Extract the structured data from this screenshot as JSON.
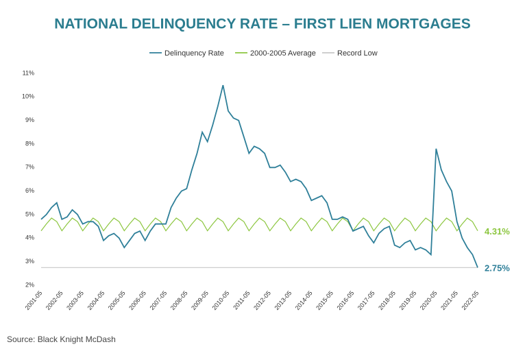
{
  "chart_data": {
    "type": "line",
    "title": "NATIONAL DELINQUENCY RATE – FIRST LIEN MORTGAGES",
    "source": "Source: Black Knight McDash",
    "x": [
      "2001-05",
      "2001-08",
      "2001-11",
      "2002-02",
      "2002-05",
      "2002-08",
      "2002-11",
      "2003-02",
      "2003-05",
      "2003-08",
      "2003-11",
      "2004-02",
      "2004-05",
      "2004-08",
      "2004-11",
      "2005-02",
      "2005-05",
      "2005-08",
      "2005-11",
      "2006-02",
      "2006-05",
      "2006-08",
      "2006-11",
      "2007-02",
      "2007-05",
      "2007-08",
      "2007-11",
      "2008-02",
      "2008-05",
      "2008-08",
      "2008-11",
      "2009-02",
      "2009-05",
      "2009-08",
      "2009-11",
      "2010-02",
      "2010-05",
      "2010-08",
      "2010-11",
      "2011-02",
      "2011-05",
      "2011-08",
      "2011-11",
      "2012-02",
      "2012-05",
      "2012-08",
      "2012-11",
      "2013-02",
      "2013-05",
      "2013-08",
      "2013-11",
      "2014-02",
      "2014-05",
      "2014-08",
      "2014-11",
      "2015-02",
      "2015-05",
      "2015-08",
      "2015-11",
      "2016-02",
      "2016-05",
      "2016-08",
      "2016-11",
      "2017-02",
      "2017-05",
      "2017-08",
      "2017-11",
      "2018-02",
      "2018-05",
      "2018-08",
      "2018-11",
      "2019-02",
      "2019-05",
      "2019-08",
      "2019-11",
      "2020-02",
      "2020-05",
      "2020-08",
      "2020-11",
      "2021-02",
      "2021-05",
      "2021-08",
      "2021-11",
      "2022-02",
      "2022-05"
    ],
    "series": [
      {
        "name": "Delinquency Rate",
        "color": "#2e7f99",
        "values": [
          4.8,
          5.0,
          5.3,
          5.5,
          4.8,
          4.9,
          5.2,
          5.0,
          4.6,
          4.7,
          4.7,
          4.5,
          3.9,
          4.1,
          4.2,
          4.0,
          3.6,
          3.9,
          4.2,
          4.3,
          3.9,
          4.3,
          4.6,
          4.6,
          4.6,
          5.3,
          5.7,
          6.0,
          6.1,
          6.9,
          7.6,
          8.5,
          8.1,
          8.8,
          9.6,
          10.5,
          9.4,
          9.1,
          9.0,
          8.3,
          7.6,
          7.9,
          7.8,
          7.6,
          7.0,
          7.0,
          7.1,
          6.8,
          6.4,
          6.5,
          6.4,
          6.1,
          5.6,
          5.7,
          5.8,
          5.5,
          4.8,
          4.8,
          4.9,
          4.8,
          4.3,
          4.4,
          4.5,
          4.1,
          3.8,
          4.2,
          4.4,
          4.5,
          3.7,
          3.6,
          3.8,
          3.9,
          3.5,
          3.6,
          3.5,
          3.3,
          7.8,
          6.9,
          6.4,
          6.0,
          4.7,
          4.0,
          3.6,
          3.3,
          2.75
        ],
        "value_labels": [
          null,
          null,
          null,
          null,
          null,
          null,
          null,
          null,
          null,
          null,
          null,
          null,
          null,
          null,
          null,
          null,
          null,
          null,
          null,
          null,
          null,
          null,
          null,
          null,
          null,
          null,
          null,
          null,
          null,
          null,
          null,
          null,
          null,
          null,
          null,
          null,
          null,
          null,
          null,
          null,
          null,
          null,
          null,
          null,
          null,
          null,
          null,
          null,
          null,
          null,
          null,
          null,
          null,
          null,
          null,
          null,
          null,
          null,
          null,
          null,
          null,
          null,
          null,
          null,
          null,
          null,
          null,
          null,
          null,
          null,
          null,
          null,
          null,
          null,
          null,
          null,
          null,
          null,
          null,
          null,
          null,
          null,
          null,
          null,
          "2.75%"
        ]
      },
      {
        "name": "2000-2005 Average",
        "color": "#8cc63f",
        "values": [
          4.31,
          4.6,
          4.85,
          4.7,
          4.31,
          4.6,
          4.85,
          4.7,
          4.31,
          4.6,
          4.85,
          4.7,
          4.31,
          4.6,
          4.85,
          4.7,
          4.31,
          4.6,
          4.85,
          4.7,
          4.31,
          4.6,
          4.85,
          4.7,
          4.31,
          4.6,
          4.85,
          4.7,
          4.31,
          4.6,
          4.85,
          4.7,
          4.31,
          4.6,
          4.85,
          4.7,
          4.31,
          4.6,
          4.85,
          4.7,
          4.31,
          4.6,
          4.85,
          4.7,
          4.31,
          4.6,
          4.85,
          4.7,
          4.31,
          4.6,
          4.85,
          4.7,
          4.31,
          4.6,
          4.85,
          4.7,
          4.31,
          4.6,
          4.85,
          4.7,
          4.31,
          4.6,
          4.85,
          4.7,
          4.31,
          4.6,
          4.85,
          4.7,
          4.31,
          4.6,
          4.85,
          4.7,
          4.31,
          4.6,
          4.85,
          4.7,
          4.31,
          4.6,
          4.85,
          4.7,
          4.31,
          4.6,
          4.85,
          4.7,
          4.31
        ],
        "value_labels": [
          null,
          null,
          null,
          null,
          null,
          null,
          null,
          null,
          null,
          null,
          null,
          null,
          null,
          null,
          null,
          null,
          null,
          null,
          null,
          null,
          null,
          null,
          null,
          null,
          null,
          null,
          null,
          null,
          null,
          null,
          null,
          null,
          null,
          null,
          null,
          null,
          null,
          null,
          null,
          null,
          null,
          null,
          null,
          null,
          null,
          null,
          null,
          null,
          null,
          null,
          null,
          null,
          null,
          null,
          null,
          null,
          null,
          null,
          null,
          null,
          null,
          null,
          null,
          null,
          null,
          null,
          null,
          null,
          null,
          null,
          null,
          null,
          null,
          null,
          null,
          null,
          null,
          null,
          null,
          null,
          null,
          null,
          null,
          null,
          "4.31%"
        ]
      },
      {
        "name": "Record Low",
        "color": "#c8c8c8",
        "values": [
          2.75,
          2.75,
          2.75,
          2.75,
          2.75,
          2.75,
          2.75,
          2.75,
          2.75,
          2.75,
          2.75,
          2.75,
          2.75,
          2.75,
          2.75,
          2.75,
          2.75,
          2.75,
          2.75,
          2.75,
          2.75,
          2.75,
          2.75,
          2.75,
          2.75,
          2.75,
          2.75,
          2.75,
          2.75,
          2.75,
          2.75,
          2.75,
          2.75,
          2.75,
          2.75,
          2.75,
          2.75,
          2.75,
          2.75,
          2.75,
          2.75,
          2.75,
          2.75,
          2.75,
          2.75,
          2.75,
          2.75,
          2.75,
          2.75,
          2.75,
          2.75,
          2.75,
          2.75,
          2.75,
          2.75,
          2.75,
          2.75,
          2.75,
          2.75,
          2.75,
          2.75,
          2.75,
          2.75,
          2.75,
          2.75,
          2.75,
          2.75,
          2.75,
          2.75,
          2.75,
          2.75,
          2.75,
          2.75,
          2.75,
          2.75,
          2.75,
          2.75,
          2.75,
          2.75,
          2.75,
          2.75,
          2.75,
          2.75,
          2.75,
          2.75
        ]
      }
    ],
    "ylim": [
      2,
      11
    ],
    "yticks": [
      {
        "value": 2,
        "label": "2%"
      },
      {
        "value": 3,
        "label": "3%"
      },
      {
        "value": 4,
        "label": "4%"
      },
      {
        "value": 5,
        "label": "5%"
      },
      {
        "value": 6,
        "label": "6%"
      },
      {
        "value": 7,
        "label": "7%"
      },
      {
        "value": 8,
        "label": "8%"
      },
      {
        "value": 9,
        "label": "9%"
      },
      {
        "value": 10,
        "label": "10%"
      },
      {
        "value": 11,
        "label": "11%"
      }
    ],
    "xticks": [
      "2001-05",
      "2002-05",
      "2003-05",
      "2004-05",
      "2005-05",
      "2006-05",
      "2007-05",
      "2008-05",
      "2009-05",
      "2010-05",
      "2011-05",
      "2012-05",
      "2013-05",
      "2014-05",
      "2015-05",
      "2016-05",
      "2017-05",
      "2018-05",
      "2019-05",
      "2020-05",
      "2021-05",
      "2022-05"
    ],
    "legend": "top",
    "grid": false
  }
}
